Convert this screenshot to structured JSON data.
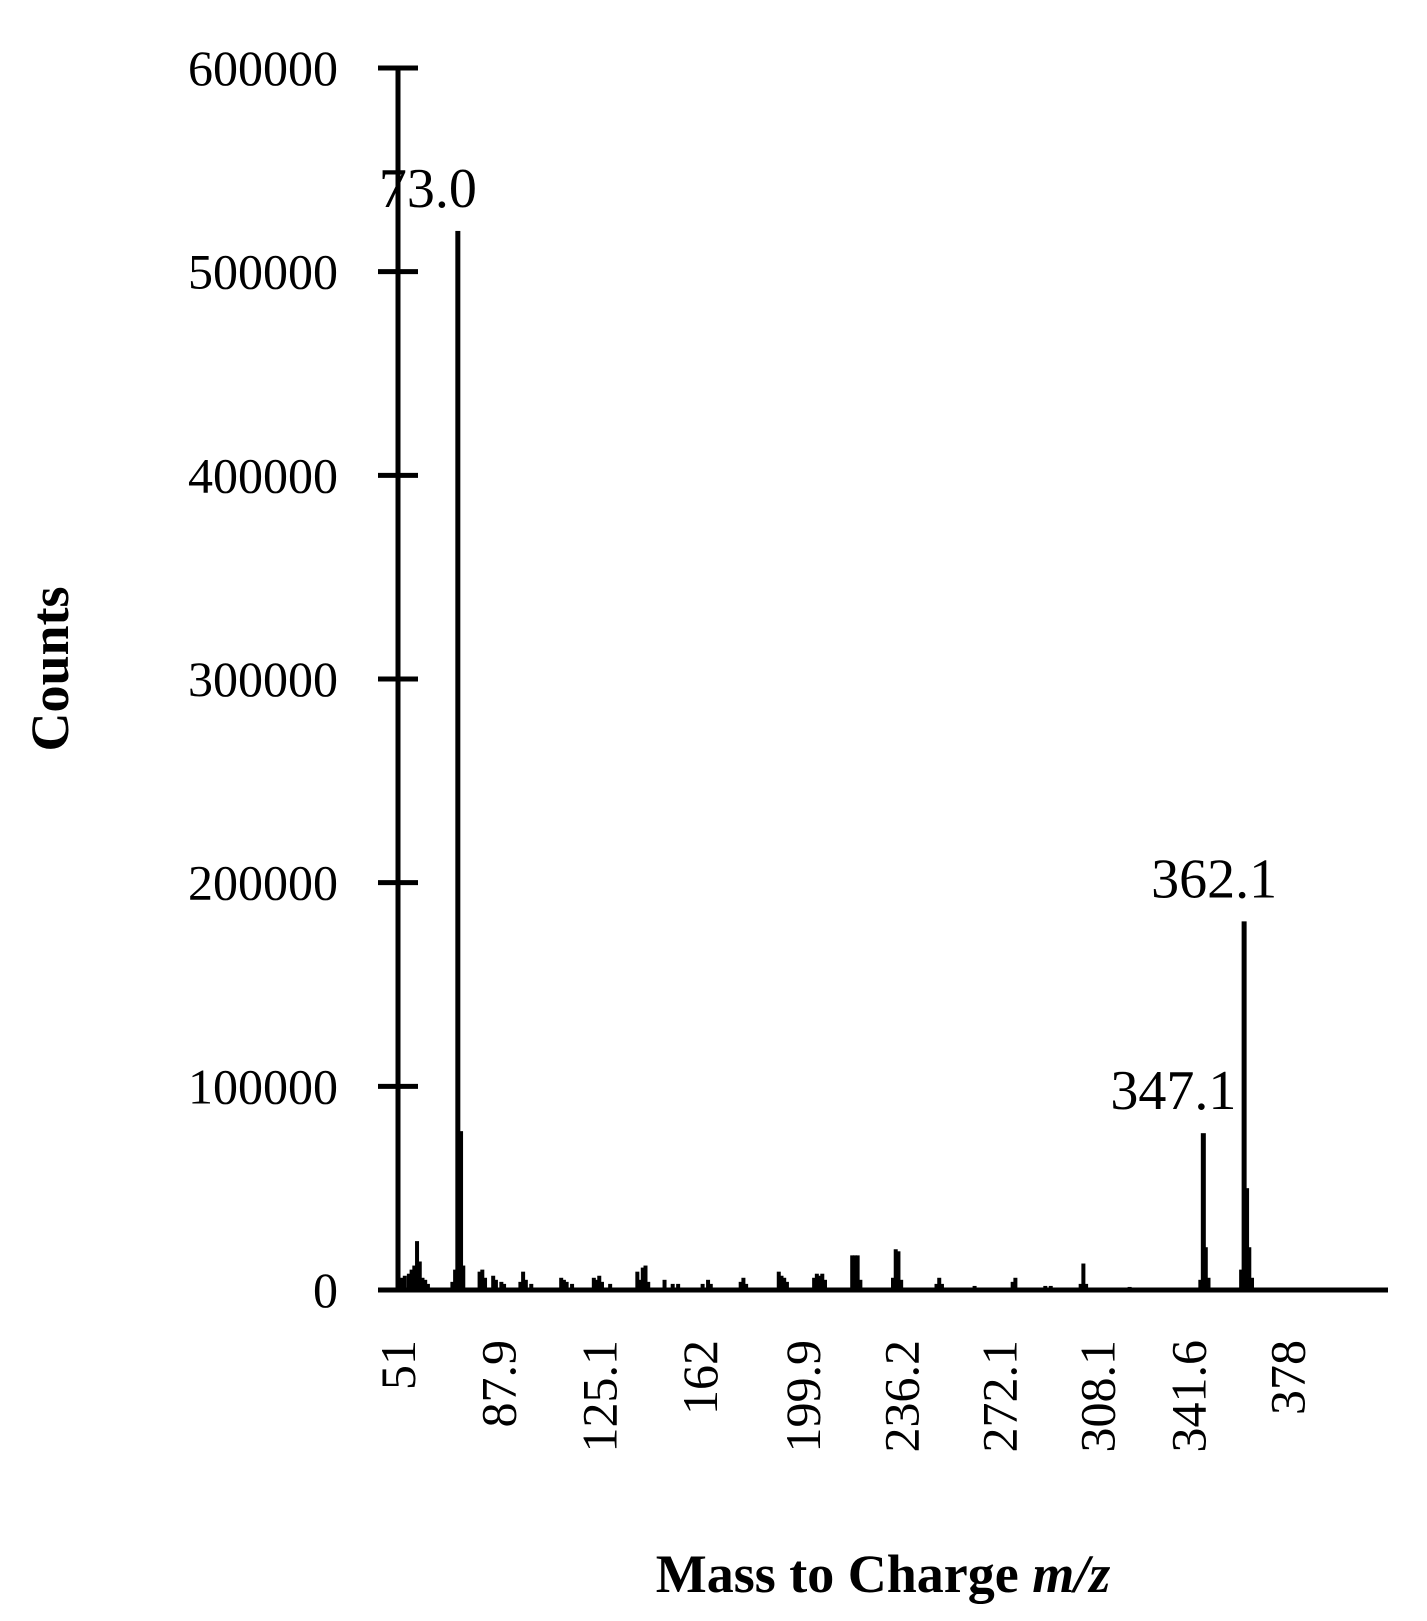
{
  "chart_data": {
    "type": "bar",
    "title": "",
    "xlabel": "Mass to Charge ",
    "xlabel_italic": "m/z",
    "ylabel": "Counts",
    "ylim": [
      0,
      600000
    ],
    "xlim": [
      51,
      415
    ],
    "grid": false,
    "yticks": [
      {
        "value": 0,
        "label": "0"
      },
      {
        "value": 100000,
        "label": "100000"
      },
      {
        "value": 200000,
        "label": "200000"
      },
      {
        "value": 300000,
        "label": "300000"
      },
      {
        "value": 400000,
        "label": "400000"
      },
      {
        "value": 500000,
        "label": "500000"
      },
      {
        "value": 600000,
        "label": "600000"
      }
    ],
    "xticks": [
      {
        "value": 51,
        "label": "51"
      },
      {
        "value": 87.9,
        "label": "87.9"
      },
      {
        "value": 125.1,
        "label": "125.1"
      },
      {
        "value": 162,
        "label": "162"
      },
      {
        "value": 199.9,
        "label": "199.9"
      },
      {
        "value": 236.2,
        "label": "236.2"
      },
      {
        "value": 272.1,
        "label": "272.1"
      },
      {
        "value": 308.1,
        "label": "308.1"
      },
      {
        "value": 341.6,
        "label": "341.6"
      },
      {
        "value": 378,
        "label": "378"
      }
    ],
    "peak_labels": [
      {
        "x": 73.0,
        "y": 520000,
        "label": "73.0"
      },
      {
        "x": 347.1,
        "y": 77000,
        "label": "347.1"
      },
      {
        "x": 362.1,
        "y": 181000,
        "label": "362.1"
      }
    ],
    "series": [
      {
        "points": [
          {
            "x": 51.5,
            "y": 4000
          },
          {
            "x": 52.5,
            "y": 6000
          },
          {
            "x": 53.5,
            "y": 7000
          },
          {
            "x": 55,
            "y": 8000
          },
          {
            "x": 56,
            "y": 10000
          },
          {
            "x": 57,
            "y": 12000
          },
          {
            "x": 58,
            "y": 24000
          },
          {
            "x": 59,
            "y": 14000
          },
          {
            "x": 60,
            "y": 6000
          },
          {
            "x": 61,
            "y": 5000
          },
          {
            "x": 62,
            "y": 3000
          },
          {
            "x": 71,
            "y": 4000
          },
          {
            "x": 72,
            "y": 10000
          },
          {
            "x": 73,
            "y": 520000
          },
          {
            "x": 74,
            "y": 78000
          },
          {
            "x": 75,
            "y": 12000
          },
          {
            "x": 81,
            "y": 9000
          },
          {
            "x": 82,
            "y": 10000
          },
          {
            "x": 83,
            "y": 6000
          },
          {
            "x": 86,
            "y": 7000
          },
          {
            "x": 87,
            "y": 5000
          },
          {
            "x": 89,
            "y": 4000
          },
          {
            "x": 90,
            "y": 3000
          },
          {
            "x": 96,
            "y": 4000
          },
          {
            "x": 97,
            "y": 9000
          },
          {
            "x": 98,
            "y": 5000
          },
          {
            "x": 100,
            "y": 3000
          },
          {
            "x": 111,
            "y": 6000
          },
          {
            "x": 112,
            "y": 5000
          },
          {
            "x": 113,
            "y": 4000
          },
          {
            "x": 115,
            "y": 3000
          },
          {
            "x": 123,
            "y": 6000
          },
          {
            "x": 124,
            "y": 5000
          },
          {
            "x": 125,
            "y": 7000
          },
          {
            "x": 126,
            "y": 4000
          },
          {
            "x": 129,
            "y": 3000
          },
          {
            "x": 139,
            "y": 9000
          },
          {
            "x": 140,
            "y": 5000
          },
          {
            "x": 141,
            "y": 11000
          },
          {
            "x": 142,
            "y": 12000
          },
          {
            "x": 143,
            "y": 4000
          },
          {
            "x": 149,
            "y": 5000
          },
          {
            "x": 152,
            "y": 3000
          },
          {
            "x": 154,
            "y": 3000
          },
          {
            "x": 163,
            "y": 3000
          },
          {
            "x": 165,
            "y": 5000
          },
          {
            "x": 166,
            "y": 3000
          },
          {
            "x": 177,
            "y": 4000
          },
          {
            "x": 178,
            "y": 6000
          },
          {
            "x": 179,
            "y": 3000
          },
          {
            "x": 191,
            "y": 9000
          },
          {
            "x": 192,
            "y": 7000
          },
          {
            "x": 193,
            "y": 6000
          },
          {
            "x": 194,
            "y": 4000
          },
          {
            "x": 204,
            "y": 6000
          },
          {
            "x": 205,
            "y": 8000
          },
          {
            "x": 206,
            "y": 7000
          },
          {
            "x": 207,
            "y": 8000
          },
          {
            "x": 208,
            "y": 5000
          },
          {
            "x": 218,
            "y": 17000
          },
          {
            "x": 219,
            "y": 17000
          },
          {
            "x": 220,
            "y": 17000
          },
          {
            "x": 221,
            "y": 5000
          },
          {
            "x": 233,
            "y": 6000
          },
          {
            "x": 234,
            "y": 20000
          },
          {
            "x": 235,
            "y": 19000
          },
          {
            "x": 236,
            "y": 5000
          },
          {
            "x": 249,
            "y": 3000
          },
          {
            "x": 250,
            "y": 6000
          },
          {
            "x": 251,
            "y": 3000
          },
          {
            "x": 263,
            "y": 2000
          },
          {
            "x": 277,
            "y": 4000
          },
          {
            "x": 278,
            "y": 6000
          },
          {
            "x": 289,
            "y": 2000
          },
          {
            "x": 291,
            "y": 2000
          },
          {
            "x": 302,
            "y": 3000
          },
          {
            "x": 303,
            "y": 13000
          },
          {
            "x": 304,
            "y": 3000
          },
          {
            "x": 320,
            "y": 1500
          },
          {
            "x": 346,
            "y": 5000
          },
          {
            "x": 347.1,
            "y": 77000
          },
          {
            "x": 348,
            "y": 21000
          },
          {
            "x": 349,
            "y": 6000
          },
          {
            "x": 361,
            "y": 10000
          },
          {
            "x": 362.1,
            "y": 181000
          },
          {
            "x": 363,
            "y": 50000
          },
          {
            "x": 364,
            "y": 21000
          },
          {
            "x": 365,
            "y": 6000
          }
        ]
      }
    ]
  }
}
